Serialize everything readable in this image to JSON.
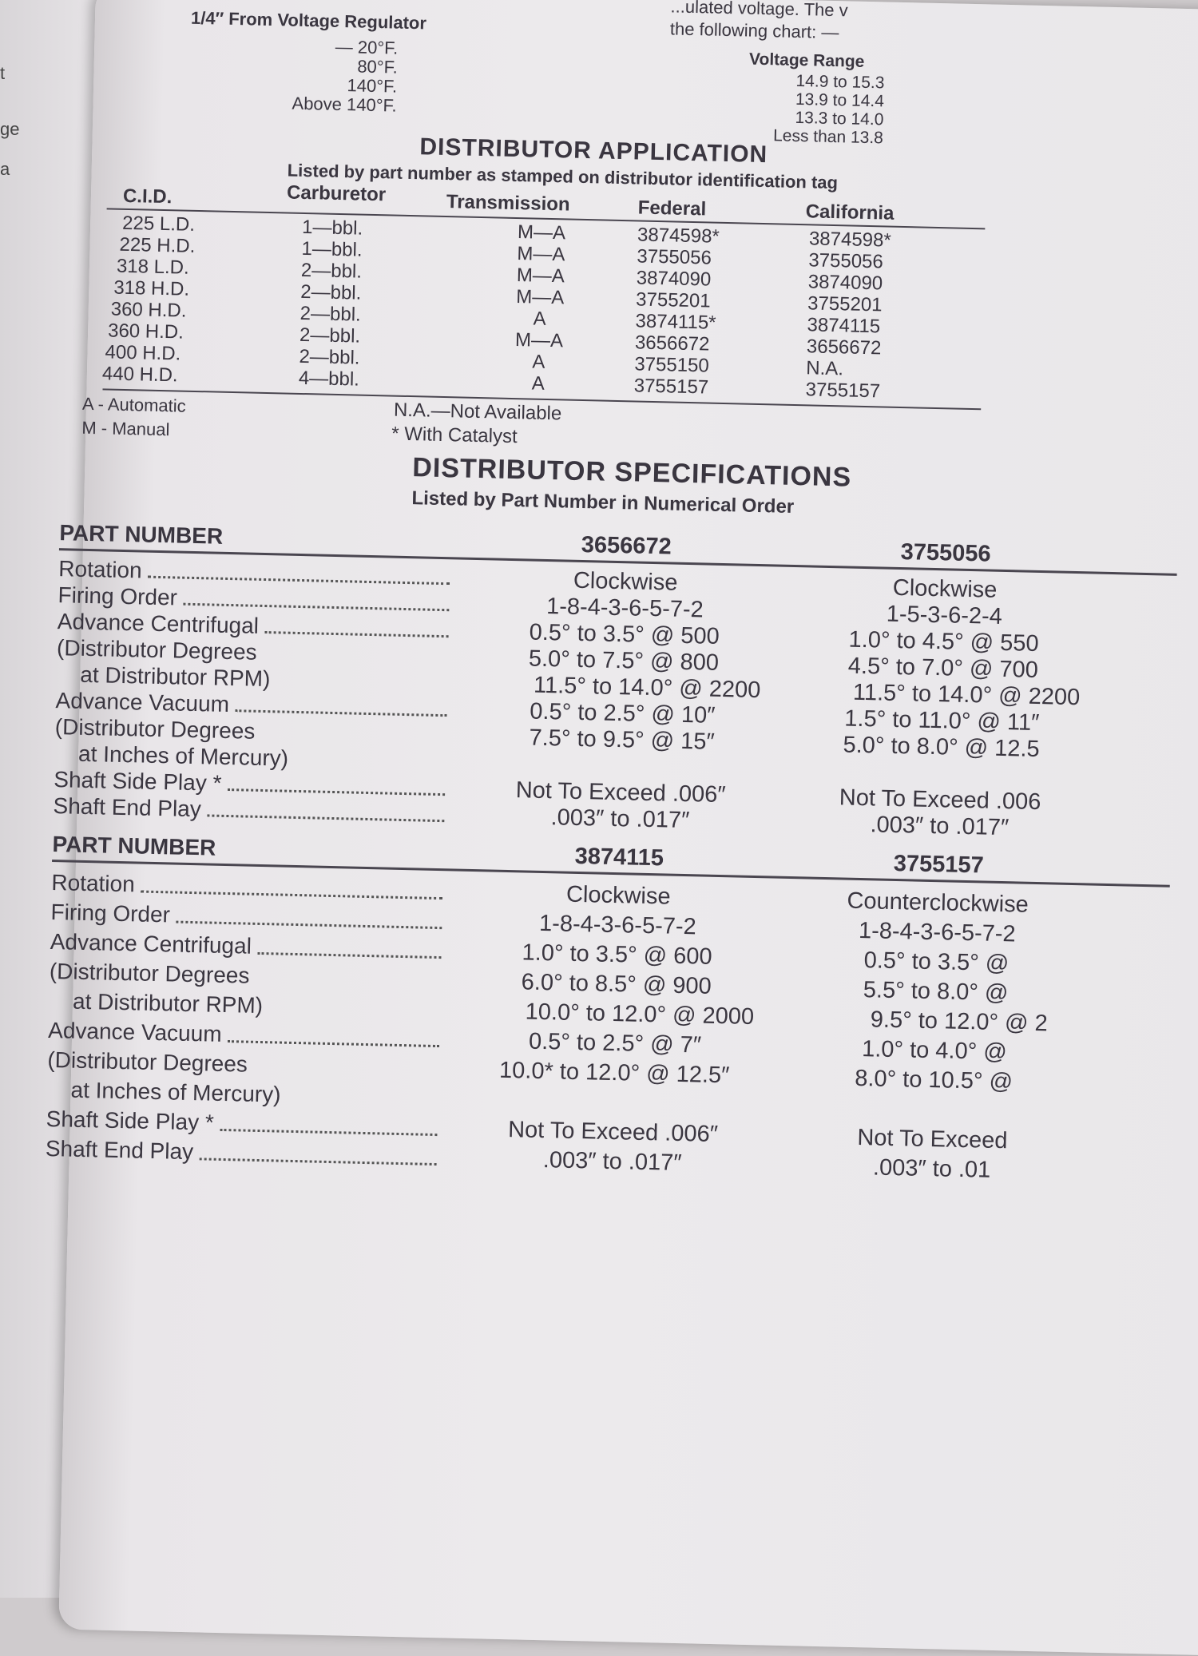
{
  "left_page": {
    "fragments": [
      "t",
      "ge",
      "a"
    ]
  },
  "top": {
    "regulator_label": "1/4″ From Voltage Regulator",
    "temps": [
      "— 20°F.",
      "80°F.",
      "140°F.",
      "Above 140°F."
    ],
    "intro_lines": [
      "...ulated voltage. The v",
      "the following chart: —"
    ],
    "voltage_header": "Voltage Range",
    "voltage_ranges": [
      "14.9 to 15.3",
      "13.9 to 14.4",
      "13.3 to 14.0",
      "Less than 13.8"
    ]
  },
  "application": {
    "title": "DISTRIBUTOR APPLICATION",
    "subtitle": "Listed by part number as stamped on distributor identification tag",
    "headers": {
      "cid": "C.I.D.",
      "carburetor": "Carburetor",
      "transmission": "Transmission",
      "federal": "Federal",
      "california": "California"
    },
    "rows": [
      [
        "225 L.D.",
        "1—bbl.",
        "M—A",
        "3874598*",
        "3874598*"
      ],
      [
        "225 H.D.",
        "1—bbl.",
        "M—A",
        "3755056",
        "3755056"
      ],
      [
        "318 L.D.",
        "2—bbl.",
        "M—A",
        "3874090",
        "3874090"
      ],
      [
        "318 H.D.",
        "2—bbl.",
        "M—A",
        "3755201",
        "3755201"
      ],
      [
        "360 H.D.",
        "2—bbl.",
        "A",
        "3874115*",
        "3874115"
      ],
      [
        "360 H.D.",
        "2—bbl.",
        "M—A",
        "3656672",
        "3656672"
      ],
      [
        "400 H.D.",
        "2—bbl.",
        "A",
        "3755150",
        "N.A."
      ],
      [
        "440 H.D.",
        "4—bbl.",
        "A",
        "3755157",
        "3755157"
      ]
    ],
    "legend": {
      "automatic": "A - Automatic",
      "manual": "M - Manual",
      "na": "N.A.—Not Available",
      "catalyst": "* With Catalyst"
    }
  },
  "specifications": {
    "title": "DISTRIBUTOR SPECIFICATIONS",
    "subtitle": "Listed by Part Number in Numerical Order",
    "blocks": [
      {
        "part_label": "PART NUMBER",
        "parts": [
          "3656672",
          "3755056"
        ],
        "labels": [
          "Rotation",
          "Firing Order",
          "Advance Centrifugal",
          "(Distributor Degrees",
          "at Distributor RPM)",
          "Advance Vacuum",
          "(Distributor Degrees",
          "at Inches of Mercury)",
          "Shaft Side Play *",
          "Shaft End Play"
        ],
        "values": [
          [
            "Clockwise",
            "1-8-4-3-6-5-7-2",
            "0.5° to 3.5° @ 500",
            "5.0° to 7.5° @ 800",
            "11.5° to 14.0° @ 2200",
            "0.5° to 2.5° @ 10″",
            "7.5° to 9.5° @ 15″",
            "",
            "Not To Exceed .006″",
            ".003″ to .017″"
          ],
          [
            "Clockwise",
            "1-5-3-6-2-4",
            "1.0° to 4.5° @ 550",
            "4.5° to 7.0° @ 700",
            "11.5° to 14.0° @ 2200",
            "1.5° to 11.0° @ 11″",
            "5.0° to 8.0° @ 12.5",
            "",
            "Not To Exceed .006",
            ".003″ to .017″"
          ]
        ]
      },
      {
        "part_label": "PART NUMBER",
        "parts": [
          "3874115",
          "3755157"
        ],
        "labels": [
          "Rotation",
          "Firing Order",
          "Advance Centrifugal",
          "(Distributor Degrees",
          "at Distributor RPM)",
          "Advance Vacuum",
          "(Distributor Degrees",
          "at Inches of Mercury)",
          "Shaft Side Play *",
          "Shaft End Play"
        ],
        "values": [
          [
            "Clockwise",
            "1-8-4-3-6-5-7-2",
            "1.0° to 3.5° @ 600",
            "6.0° to 8.5° @ 900",
            "10.0° to 12.0° @ 2000",
            "0.5° to 2.5° @ 7″",
            "10.0* to 12.0° @ 12.5″",
            "",
            "Not To Exceed .006″",
            ".003″ to .017″"
          ],
          [
            "Counterclockwise",
            "1-8-4-3-6-5-7-2",
            "0.5° to 3.5° @",
            "5.5° to 8.0° @",
            "9.5° to 12.0° @ 2",
            "1.0° to 4.0° @",
            "8.0° to 10.5° @",
            "",
            "Not To Exceed",
            ".003″ to .01"
          ]
        ]
      }
    ]
  }
}
